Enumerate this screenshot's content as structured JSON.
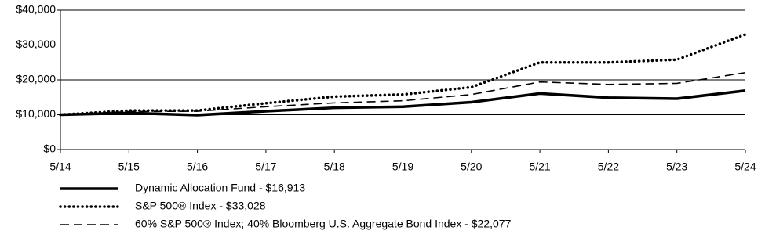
{
  "chart_data": {
    "type": "line",
    "categories": [
      "5/14",
      "5/15",
      "5/16",
      "5/17",
      "5/18",
      "5/19",
      "5/20",
      "5/21",
      "5/22",
      "5/23",
      "5/24"
    ],
    "series": [
      {
        "name": "Dynamic Allocation Fund - $16,913",
        "color": "#000000",
        "style": "solid",
        "values": [
          10000,
          10500,
          9900,
          11000,
          12000,
          12300,
          13600,
          16100,
          14900,
          14600,
          16913
        ]
      },
      {
        "name": "S&P 500® Index - $33,028",
        "color": "#000000",
        "style": "dotted",
        "values": [
          10000,
          11200,
          11200,
          13300,
          15200,
          15800,
          17900,
          25000,
          25000,
          25800,
          33028
        ]
      },
      {
        "name": "60% S&P 500® Index; 40% Bloomberg U.S. Aggregate Bond Index - $22,077",
        "color": "#000000",
        "style": "dashed",
        "values": [
          10000,
          10900,
          11000,
          12300,
          13400,
          14000,
          15800,
          19400,
          18700,
          19000,
          22077
        ]
      }
    ],
    "ylim": [
      0,
      40000
    ],
    "yticks": [
      {
        "value": 0,
        "label": "$0"
      },
      {
        "value": 10000,
        "label": "$10,000"
      },
      {
        "value": 20000,
        "label": "$20,000"
      },
      {
        "value": 30000,
        "label": "$30,000"
      },
      {
        "value": 40000,
        "label": "$40,000"
      }
    ],
    "grid": true
  }
}
